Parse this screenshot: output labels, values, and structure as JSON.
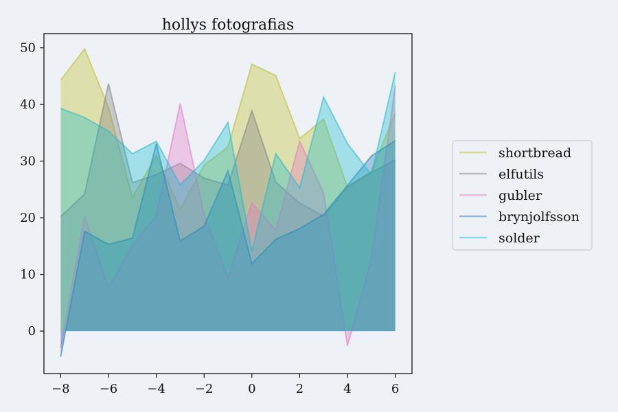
{
  "chart_data": {
    "type": "area",
    "title": "hollys fotografias",
    "xlabel": "",
    "ylabel": "",
    "x": [
      -8,
      -7,
      -6,
      -5,
      -4,
      -3,
      -2,
      -1,
      0,
      1,
      2,
      3,
      4,
      5,
      6
    ],
    "xlim": [
      -8.7,
      6.7
    ],
    "ylim": [
      -7.5,
      52.5
    ],
    "xticks": [
      -8,
      -6,
      -4,
      -2,
      0,
      2,
      4,
      6
    ],
    "yticks": [
      0,
      10,
      20,
      30,
      40,
      50
    ],
    "xtick_labels": [
      "−8",
      "−6",
      "−4",
      "−2",
      "0",
      "2",
      "4",
      "6"
    ],
    "ytick_labels": [
      "0",
      "10",
      "20",
      "30",
      "40",
      "50"
    ],
    "grid": false,
    "legend_position": "right",
    "series": [
      {
        "name": "shortbread",
        "color": "#bcbd22",
        "values": [
          44.3,
          49.8,
          39.5,
          23.6,
          31.0,
          21.5,
          29.3,
          32.5,
          47.1,
          45.1,
          34.0,
          37.4,
          25.4,
          28.2,
          38.5
        ]
      },
      {
        "name": "elfutils",
        "color": "#7f7f7f",
        "values": [
          20.2,
          24.2,
          43.7,
          26.2,
          27.6,
          29.6,
          27.0,
          25.8,
          38.9,
          26.3,
          22.6,
          20.3,
          25.5,
          28.0,
          30.2
        ]
      },
      {
        "name": "gubler",
        "color": "#e377c2",
        "values": [
          -3.0,
          20.3,
          7.6,
          15.2,
          20.4,
          40.2,
          20.6,
          9.4,
          22.6,
          17.8,
          33.5,
          24.4,
          -2.6,
          12.6,
          43.3
        ]
      },
      {
        "name": "brynjolfsson",
        "color": "#1f77b4",
        "values": [
          -4.5,
          17.6,
          15.3,
          16.4,
          33.1,
          15.9,
          18.5,
          28.3,
          11.9,
          16.2,
          18.1,
          20.6,
          25.7,
          30.9,
          33.6
        ]
      },
      {
        "name": "solder",
        "color": "#17becf",
        "values": [
          39.3,
          37.7,
          35.3,
          31.3,
          33.5,
          25.8,
          30.1,
          36.8,
          14.1,
          31.3,
          25.3,
          41.3,
          33.1,
          27.6,
          45.7
        ]
      }
    ]
  }
}
